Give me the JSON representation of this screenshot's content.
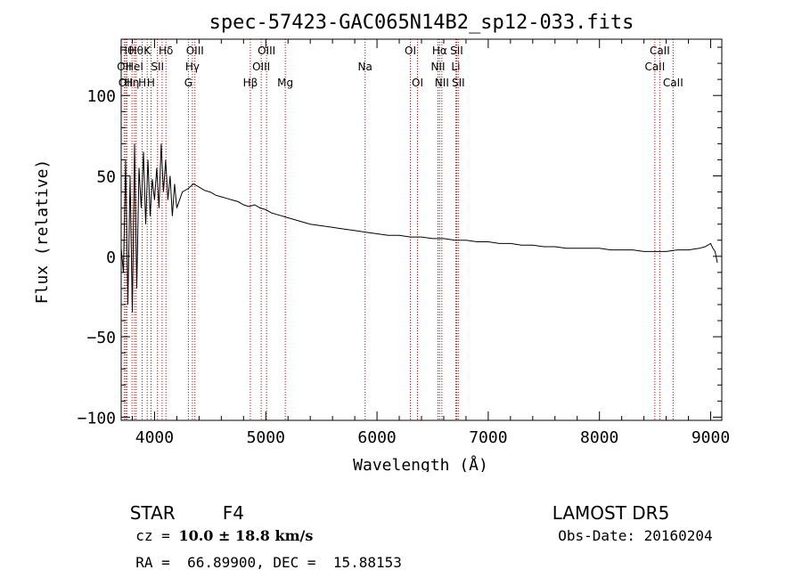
{
  "chart_data": {
    "type": "line",
    "title": "spec-57423-GAC065N14B2_sp12-033.fits",
    "xlabel": "Wavelength (Å)",
    "ylabel": "Flux (relative)",
    "xlim": [
      3700,
      9100
    ],
    "ylim": [
      -102,
      135
    ],
    "xticks": [
      4000,
      5000,
      6000,
      7000,
      8000,
      9000
    ],
    "yticks": [
      -100,
      -50,
      0,
      50,
      100
    ],
    "xtick_labels": [
      "4000",
      "5000",
      "6000",
      "7000",
      "8000",
      "9000"
    ],
    "ytick_labels": [
      "−100",
      "−50",
      "0",
      "50",
      "100"
    ],
    "series": [
      {
        "x": [
          3700,
          3720,
          3740,
          3760,
          3780,
          3800,
          3820,
          3840,
          3860,
          3880,
          3900,
          3920,
          3940,
          3960,
          3980,
          4000,
          4020,
          4040,
          4060,
          4080,
          4100,
          4120,
          4140,
          4160,
          4180,
          4200,
          4250,
          4300,
          4350,
          4400,
          4450,
          4500,
          4550,
          4600,
          4650,
          4700,
          4750,
          4800,
          4850,
          4900,
          4950,
          5000,
          5050,
          5100,
          5200,
          5300,
          5400,
          5500,
          5600,
          5700,
          5800,
          5900,
          6000,
          6100,
          6200,
          6300,
          6400,
          6500,
          6600,
          6700,
          6800,
          6900,
          7000,
          7100,
          7200,
          7300,
          7400,
          7500,
          7600,
          7700,
          7800,
          7900,
          8000,
          8100,
          8200,
          8300,
          8400,
          8500,
          8600,
          8700,
          8800,
          8900,
          8950,
          9000,
          9020,
          9040,
          9060
        ],
        "y": [
          5,
          -10,
          60,
          -30,
          50,
          -35,
          70,
          -20,
          55,
          30,
          65,
          20,
          60,
          25,
          48,
          35,
          55,
          30,
          70,
          40,
          60,
          35,
          50,
          25,
          45,
          30,
          40,
          42,
          45,
          43,
          41,
          40,
          38,
          37,
          36,
          35,
          34,
          32,
          31,
          32,
          30,
          29,
          27,
          26,
          24,
          22,
          20,
          19,
          18,
          17,
          16,
          15,
          14,
          13,
          13,
          12,
          12,
          11,
          11,
          10,
          10,
          9,
          9,
          8,
          8,
          7,
          7,
          6,
          6,
          5,
          5,
          5,
          5,
          4,
          4,
          4,
          3,
          3,
          3,
          4,
          4,
          5,
          6,
          8,
          5,
          3,
          -4
        ]
      }
    ],
    "line_marks": [
      {
        "x": 3727,
        "label": "OII",
        "row": 1
      },
      {
        "x": 3740,
        "label": "OII",
        "row": 2
      },
      {
        "x": 3750,
        "label": "Hθ",
        "row": 0
      },
      {
        "x": 3797,
        "label": "Hη",
        "row": 2
      },
      {
        "x": 3820,
        "label": "HeI",
        "row": 1
      },
      {
        "x": 3835,
        "label": "Hθ",
        "row": 0
      },
      {
        "x": 3889,
        "label": "H",
        "row": 2
      },
      {
        "x": 3934,
        "label": "K",
        "row": 0
      },
      {
        "x": 3968,
        "label": "H",
        "row": 2
      },
      {
        "x": 4026,
        "label": "SII",
        "row": 1
      },
      {
        "x": 4068,
        "label": "",
        "row": 1
      },
      {
        "x": 4102,
        "label": "Hδ",
        "row": 0
      },
      {
        "x": 4304,
        "label": "G",
        "row": 2
      },
      {
        "x": 4340,
        "label": "Hγ",
        "row": 1
      },
      {
        "x": 4363,
        "label": "OIII",
        "row": 0
      },
      {
        "x": 4861,
        "label": "Hβ",
        "row": 2
      },
      {
        "x": 4959,
        "label": "OIII",
        "row": 1
      },
      {
        "x": 5007,
        "label": "OIII",
        "row": 0
      },
      {
        "x": 5175,
        "label": "Mg",
        "row": 2
      },
      {
        "x": 5893,
        "label": "Na",
        "row": 1
      },
      {
        "x": 6300,
        "label": "OI",
        "row": 0
      },
      {
        "x": 6364,
        "label": "OI",
        "row": 2
      },
      {
        "x": 6548,
        "label": "NII",
        "row": 1
      },
      {
        "x": 6563,
        "label": "Hα",
        "row": 0
      },
      {
        "x": 6583,
        "label": "NII",
        "row": 2
      },
      {
        "x": 6708,
        "label": "Li",
        "row": 1
      },
      {
        "x": 6716,
        "label": "SII",
        "row": 0
      },
      {
        "x": 6731,
        "label": "SII",
        "row": 2
      },
      {
        "x": 8498,
        "label": "CaII",
        "row": 1
      },
      {
        "x": 8542,
        "label": "CaII",
        "row": 0
      },
      {
        "x": 8662,
        "label": "CaII",
        "row": 2
      }
    ]
  },
  "info": {
    "class_label": "STAR",
    "subclass": "F4",
    "survey": "LAMOST DR5",
    "cz_prefix": "cz = ",
    "cz_value": "10.0 ± 18.8 km/s",
    "obs_date": "Obs-Date: 20160204",
    "radec": "RA =  66.89900, DEC =  15.88153"
  },
  "colors": {
    "axis": "#000000",
    "spectrum": "#000000",
    "line_marker": "#c00000",
    "background": "#ffffff"
  }
}
